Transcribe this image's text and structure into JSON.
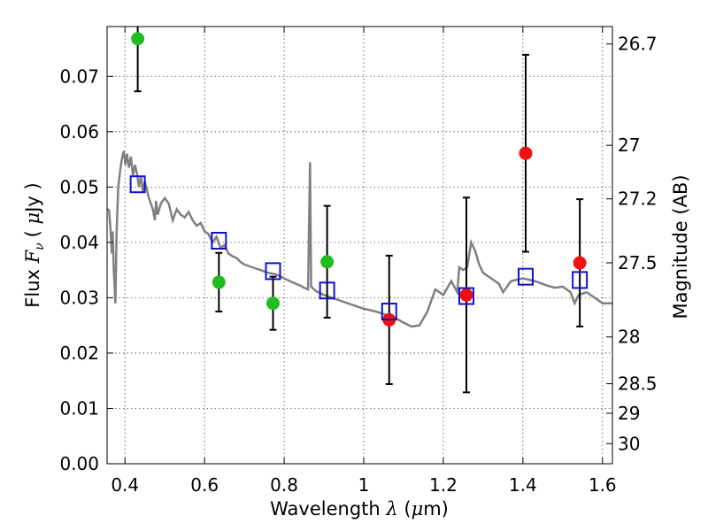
{
  "chart_data": {
    "type": "scatter",
    "xlabel": "Wavelength  λ (μm)",
    "ylabel": "Flux  F_ν  ( μJy )",
    "ylabel_parts": {
      "prefix": "Flux ",
      "var": "F",
      "sub": "ν",
      "unit_open": "( ",
      "mu": "μ",
      "unit_rest": "Jy )"
    },
    "xlabel_parts": {
      "prefix": "Wavelength ",
      "var": "λ",
      "unit_open": " (",
      "mu": "μ",
      "unit_rest": "m)"
    },
    "y2label": "Magnitude (AB)",
    "xlim": [
      0.355,
      1.625
    ],
    "ylim": [
      0.0,
      0.079
    ],
    "grid": true,
    "x_ticks": [
      0.4,
      0.6,
      0.8,
      1.0,
      1.2,
      1.4,
      1.6
    ],
    "x_tick_labels": [
      "0.4",
      "0.6",
      "0.8",
      "1",
      "1.2",
      "1.4",
      "1.6"
    ],
    "y_ticks": [
      0.0,
      0.01,
      0.02,
      0.03,
      0.04,
      0.05,
      0.06,
      0.07
    ],
    "y_tick_labels": [
      "0.00",
      "0.01",
      "0.02",
      "0.03",
      "0.04",
      "0.05",
      "0.06",
      "0.07"
    ],
    "y2_ticks": [
      {
        "label": "26.7",
        "mag": 26.7
      },
      {
        "label": "27",
        "mag": 27.0
      },
      {
        "label": "27.2",
        "mag": 27.2
      },
      {
        "label": "27.5",
        "mag": 27.5
      },
      {
        "label": "28",
        "mag": 28.0
      },
      {
        "label": "28.5",
        "mag": 28.5
      },
      {
        "label": "29",
        "mag": 29.0
      },
      {
        "label": "30",
        "mag": 30.0
      }
    ],
    "series": [
      {
        "marker": "circle",
        "color": "#22bb22",
        "points": [
          {
            "x": 0.432,
            "y": 0.0768,
            "err": 0.0095
          },
          {
            "x": 0.636,
            "y": 0.0328,
            "err": 0.0053
          },
          {
            "x": 0.772,
            "y": 0.029,
            "err": 0.0048
          },
          {
            "x": 0.908,
            "y": 0.0365,
            "err": 0.0101
          }
        ]
      },
      {
        "marker": "circle",
        "color": "#ee1111",
        "points": [
          {
            "x": 1.064,
            "y": 0.026,
            "err": 0.0116
          },
          {
            "x": 1.258,
            "y": 0.0305,
            "err": 0.0176
          },
          {
            "x": 1.407,
            "y": 0.0561,
            "err": 0.0178
          },
          {
            "x": 1.543,
            "y": 0.0363,
            "err": 0.0115
          }
        ]
      },
      {
        "marker": "open-square",
        "color": "#1111cc",
        "points": [
          {
            "x": 0.432,
            "y": 0.0505
          },
          {
            "x": 0.636,
            "y": 0.0403
          },
          {
            "x": 0.772,
            "y": 0.0348
          },
          {
            "x": 0.908,
            "y": 0.0313
          },
          {
            "x": 1.064,
            "y": 0.0275
          },
          {
            "x": 1.258,
            "y": 0.0303
          },
          {
            "x": 1.407,
            "y": 0.0338
          },
          {
            "x": 1.543,
            "y": 0.0332
          }
        ]
      },
      {
        "marker": "line",
        "color": "#808080",
        "points": [
          {
            "x": 0.355,
            "y": 0.046
          },
          {
            "x": 0.36,
            "y": 0.0458
          },
          {
            "x": 0.364,
            "y": 0.042
          },
          {
            "x": 0.367,
            "y": 0.038
          },
          {
            "x": 0.369,
            "y": 0.042
          },
          {
            "x": 0.372,
            "y": 0.035
          },
          {
            "x": 0.376,
            "y": 0.029
          },
          {
            "x": 0.379,
            "y": 0.042
          },
          {
            "x": 0.383,
            "y": 0.05
          },
          {
            "x": 0.388,
            "y": 0.053
          },
          {
            "x": 0.392,
            "y": 0.055
          },
          {
            "x": 0.397,
            "y": 0.0565
          },
          {
            "x": 0.401,
            "y": 0.054
          },
          {
            "x": 0.405,
            "y": 0.056
          },
          {
            "x": 0.41,
            "y": 0.0535
          },
          {
            "x": 0.415,
            "y": 0.0555
          },
          {
            "x": 0.42,
            "y": 0.052
          },
          {
            "x": 0.425,
            "y": 0.054
          },
          {
            "x": 0.43,
            "y": 0.0525
          },
          {
            "x": 0.435,
            "y": 0.05
          },
          {
            "x": 0.44,
            "y": 0.052
          },
          {
            "x": 0.445,
            "y": 0.049
          },
          {
            "x": 0.45,
            "y": 0.051
          },
          {
            "x": 0.46,
            "y": 0.048
          },
          {
            "x": 0.47,
            "y": 0.046
          },
          {
            "x": 0.475,
            "y": 0.044
          },
          {
            "x": 0.478,
            "y": 0.0475
          },
          {
            "x": 0.482,
            "y": 0.045
          },
          {
            "x": 0.49,
            "y": 0.047
          },
          {
            "x": 0.5,
            "y": 0.048
          },
          {
            "x": 0.51,
            "y": 0.047
          },
          {
            "x": 0.52,
            "y": 0.044
          },
          {
            "x": 0.53,
            "y": 0.046
          },
          {
            "x": 0.54,
            "y": 0.045
          },
          {
            "x": 0.55,
            "y": 0.0445
          },
          {
            "x": 0.56,
            "y": 0.0455
          },
          {
            "x": 0.57,
            "y": 0.044
          },
          {
            "x": 0.58,
            "y": 0.043
          },
          {
            "x": 0.59,
            "y": 0.0435
          },
          {
            "x": 0.6,
            "y": 0.042
          },
          {
            "x": 0.61,
            "y": 0.0415
          },
          {
            "x": 0.62,
            "y": 0.04
          },
          {
            "x": 0.63,
            "y": 0.041
          },
          {
            "x": 0.64,
            "y": 0.039
          },
          {
            "x": 0.65,
            "y": 0.0395
          },
          {
            "x": 0.66,
            "y": 0.038
          },
          {
            "x": 0.67,
            "y": 0.0375
          },
          {
            "x": 0.68,
            "y": 0.0372
          },
          {
            "x": 0.69,
            "y": 0.0365
          },
          {
            "x": 0.7,
            "y": 0.036
          },
          {
            "x": 0.72,
            "y": 0.0355
          },
          {
            "x": 0.74,
            "y": 0.035
          },
          {
            "x": 0.76,
            "y": 0.0345
          },
          {
            "x": 0.78,
            "y": 0.0342
          },
          {
            "x": 0.8,
            "y": 0.0335
          },
          {
            "x": 0.82,
            "y": 0.0328
          },
          {
            "x": 0.84,
            "y": 0.0322
          },
          {
            "x": 0.85,
            "y": 0.0318
          },
          {
            "x": 0.86,
            "y": 0.0315
          },
          {
            "x": 0.865,
            "y": 0.0545
          },
          {
            "x": 0.868,
            "y": 0.032
          },
          {
            "x": 0.88,
            "y": 0.0312
          },
          {
            "x": 0.9,
            "y": 0.0305
          },
          {
            "x": 0.92,
            "y": 0.03
          },
          {
            "x": 0.94,
            "y": 0.0295
          },
          {
            "x": 0.96,
            "y": 0.029
          },
          {
            "x": 0.98,
            "y": 0.0285
          },
          {
            "x": 1.0,
            "y": 0.028
          },
          {
            "x": 1.02,
            "y": 0.0277
          },
          {
            "x": 1.04,
            "y": 0.0273
          },
          {
            "x": 1.06,
            "y": 0.0268
          },
          {
            "x": 1.08,
            "y": 0.0263
          },
          {
            "x": 1.1,
            "y": 0.0255
          },
          {
            "x": 1.12,
            "y": 0.0248
          },
          {
            "x": 1.14,
            "y": 0.025
          },
          {
            "x": 1.16,
            "y": 0.0275
          },
          {
            "x": 1.18,
            "y": 0.0315
          },
          {
            "x": 1.2,
            "y": 0.0305
          },
          {
            "x": 1.22,
            "y": 0.033
          },
          {
            "x": 1.235,
            "y": 0.031
          },
          {
            "x": 1.24,
            "y": 0.0355
          },
          {
            "x": 1.25,
            "y": 0.035
          },
          {
            "x": 1.26,
            "y": 0.0355
          },
          {
            "x": 1.27,
            "y": 0.04
          },
          {
            "x": 1.28,
            "y": 0.0385
          },
          {
            "x": 1.29,
            "y": 0.036
          },
          {
            "x": 1.3,
            "y": 0.0345
          },
          {
            "x": 1.32,
            "y": 0.0335
          },
          {
            "x": 1.34,
            "y": 0.0325
          },
          {
            "x": 1.35,
            "y": 0.031
          },
          {
            "x": 1.37,
            "y": 0.033
          },
          {
            "x": 1.4,
            "y": 0.0335
          },
          {
            "x": 1.43,
            "y": 0.033
          },
          {
            "x": 1.46,
            "y": 0.0322
          },
          {
            "x": 1.48,
            "y": 0.0318
          },
          {
            "x": 1.5,
            "y": 0.032
          },
          {
            "x": 1.52,
            "y": 0.031
          },
          {
            "x": 1.53,
            "y": 0.029
          },
          {
            "x": 1.54,
            "y": 0.0305
          },
          {
            "x": 1.56,
            "y": 0.031
          },
          {
            "x": 1.58,
            "y": 0.03
          },
          {
            "x": 1.6,
            "y": 0.029
          },
          {
            "x": 1.625,
            "y": 0.029
          }
        ]
      }
    ]
  }
}
